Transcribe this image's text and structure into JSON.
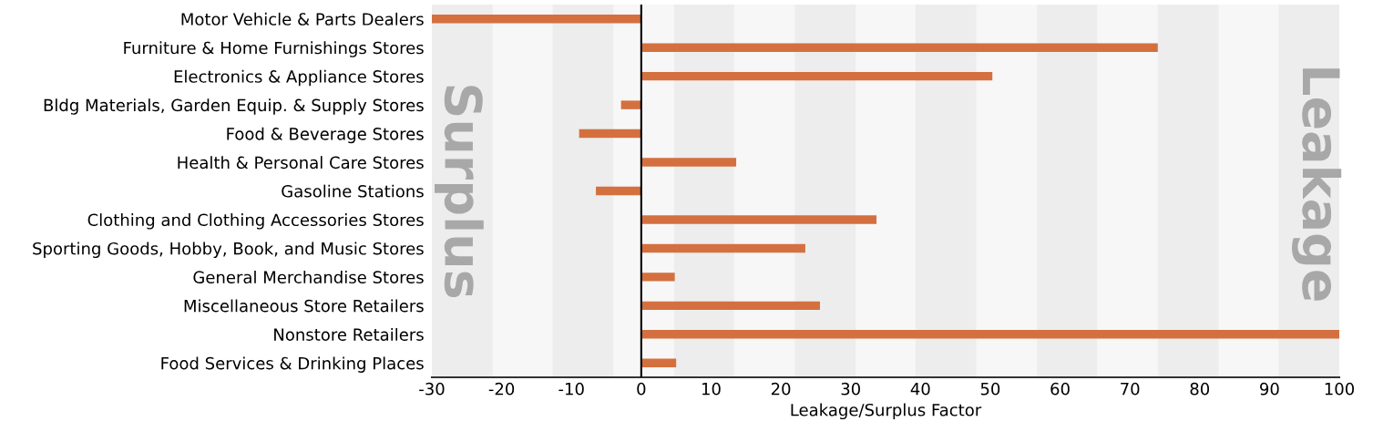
{
  "chart_data": {
    "type": "bar",
    "orientation": "horizontal",
    "xlabel": "Leakage/Surplus Factor",
    "categories": [
      "Motor Vehicle & Parts Dealers",
      "Furniture & Home Furnishings Stores",
      "Electronics & Appliance Stores",
      "Bldg Materials, Garden Equip. & Supply Stores",
      "Food & Beverage Stores",
      "Health & Personal Care Stores",
      "Gasoline Stations",
      "Clothing and Clothing Accessories Stores",
      "Sporting Goods, Hobby, Book, and Music Stores",
      "General Merchandise Stores",
      "Miscellaneous Store Retailers",
      "Nonstore Retailers",
      "Food Services & Drinking Places"
    ],
    "values": [
      -30,
      74.0,
      50.3,
      -2.9,
      -8.9,
      13.6,
      -6.5,
      33.7,
      23.5,
      4.8,
      25.6,
      100,
      5.0
    ],
    "color": "#d4703f",
    "xlim": [
      -30,
      100
    ],
    "xticks": [
      -30,
      -20,
      -10,
      0,
      10,
      20,
      30,
      40,
      50,
      60,
      70,
      80,
      90,
      100
    ],
    "ref_lines": [
      {
        "axis": "x",
        "value": 0,
        "color": "#000000"
      }
    ],
    "bands": [
      {
        "axis": "x",
        "from": -30,
        "to": -21.3,
        "color": "#ededed"
      },
      {
        "axis": "x",
        "from": -12.7,
        "to": -4,
        "color": "#ededed"
      },
      {
        "axis": "x",
        "from": 4.7,
        "to": 13.3,
        "color": "#ededed"
      },
      {
        "axis": "x",
        "from": 22,
        "to": 30.7,
        "color": "#ededed"
      },
      {
        "axis": "x",
        "from": 39.3,
        "to": 48,
        "color": "#ededed"
      },
      {
        "axis": "x",
        "from": 56.7,
        "to": 65.3,
        "color": "#ededed"
      },
      {
        "axis": "x",
        "from": 74,
        "to": 82.7,
        "color": "#ededed"
      },
      {
        "axis": "x",
        "from": 91.3,
        "to": 100,
        "color": "#ededed"
      }
    ],
    "annotations": [
      "Surplus",
      "Leakage"
    ],
    "grid": false,
    "legend": false
  }
}
